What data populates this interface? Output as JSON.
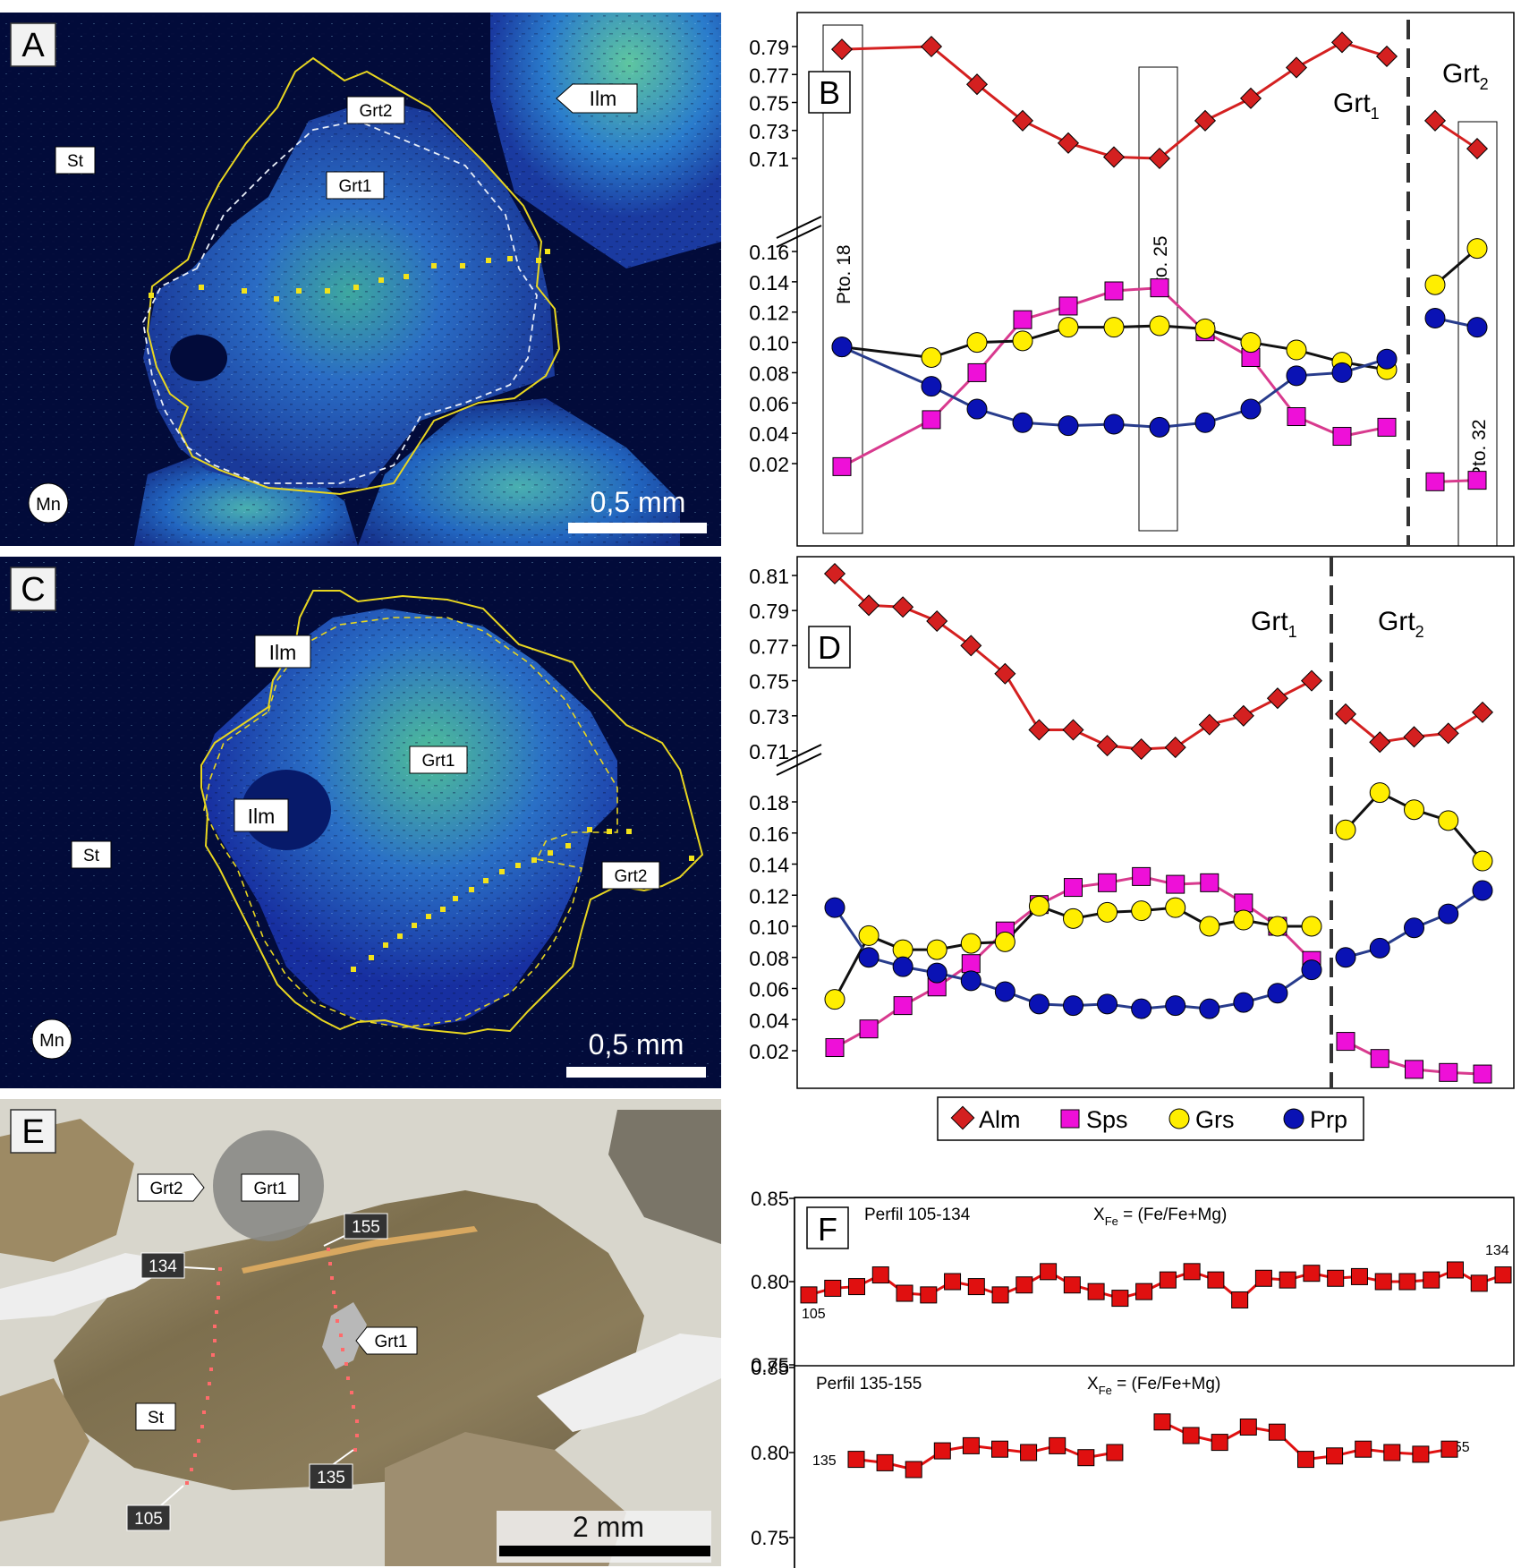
{
  "panels": {
    "A": {
      "letter": "A",
      "scale": "0,5 mm",
      "labels": {
        "grt2": "Grt2",
        "grt1": "Grt1",
        "ilm": "Ilm",
        "st": "St",
        "mn": "Mn"
      }
    },
    "C": {
      "letter": "C",
      "scale": "0,5 mm",
      "labels": {
        "ilm1": "Ilm",
        "ilm2": "Ilm",
        "grt1": "Grt1",
        "grt2": "Grt2",
        "st": "St",
        "mn": "Mn"
      }
    },
    "E": {
      "letter": "E",
      "scale": "2 mm",
      "labels": {
        "grt2": "Grt2",
        "grt1": "Grt1",
        "grt1b": "Grt1",
        "st": "St",
        "p134": "134",
        "p155": "155",
        "p135": "135",
        "p105": "105"
      }
    }
  },
  "colors": {
    "alm": "#d42020",
    "sps": "#ee10d8",
    "grs": "#ffee00",
    "prp": "#0a12b4",
    "sps_line": "#d83a8e",
    "prp_line": "#283c8c",
    "xfe": "#e01010"
  },
  "legend": {
    "alm": "Alm",
    "sps": "Sps",
    "grs": "Grs",
    "prp": "Prp"
  },
  "chart_data": [
    {
      "type": "line",
      "panel": "B",
      "zone_labels": {
        "grt1": "Grt",
        "grt1_sub": "1",
        "grt2": "Grt",
        "grt2_sub": "2"
      },
      "points": {
        "p18": "Pto. 18",
        "p25": "Pto. 25",
        "p32": "Pto. 32"
      },
      "upper_axis": {
        "ticks": [
          "0.79",
          "0.77",
          "0.75",
          "0.73",
          "0.71"
        ],
        "range": [
          0.702,
          0.8
        ]
      },
      "lower_axis": {
        "ticks": [
          "0.16",
          "0.14",
          "0.12",
          "0.10",
          "0.08",
          "0.06",
          "0.04",
          "0.02"
        ],
        "range": [
          0.0,
          0.17
        ]
      },
      "grt1_x": [
        1,
        2,
        3,
        4,
        5,
        6,
        7,
        8,
        9,
        10,
        11,
        12,
        13
      ],
      "grt2_x": [
        14,
        15
      ],
      "series": [
        {
          "name": "Alm",
          "grt1": [
            0.788,
            0.79,
            0.763,
            0.737,
            0.721,
            0.711,
            0.71,
            0.737,
            0.753,
            0.775,
            0.793,
            0.783
          ],
          "grt1_x": [
            1,
            3,
            4,
            5,
            6,
            7,
            8,
            9,
            10,
            11,
            12,
            13
          ],
          "grt2": [
            0.737,
            0.717
          ]
        },
        {
          "name": "Sps",
          "grt1": [
            0.018,
            0.049,
            0.08,
            0.115,
            0.124,
            0.134,
            0.136,
            0.107,
            0.09,
            0.051,
            0.038,
            0.044
          ],
          "grt1_x": [
            1,
            3,
            4,
            5,
            6,
            7,
            8,
            9,
            10,
            11,
            12,
            13
          ],
          "grt2": [
            0.008,
            0.009
          ]
        },
        {
          "name": "Grs",
          "grt1": [
            0.097,
            0.09,
            0.1,
            0.101,
            0.11,
            0.11,
            0.111,
            0.109,
            0.1,
            0.095,
            0.087,
            0.082
          ],
          "grt1_x": [
            1,
            3,
            4,
            5,
            6,
            7,
            8,
            9,
            10,
            11,
            12,
            13
          ],
          "grt2": [
            0.138,
            0.162
          ]
        },
        {
          "name": "Prp",
          "grt1": [
            0.097,
            0.071,
            0.056,
            0.047,
            0.045,
            0.046,
            0.044,
            0.047,
            0.056,
            0.078,
            0.08,
            0.089
          ],
          "grt1_x": [
            1,
            3,
            4,
            5,
            6,
            7,
            8,
            9,
            10,
            11,
            12,
            13
          ],
          "grt2": [
            0.116,
            0.11
          ]
        }
      ]
    },
    {
      "type": "line",
      "panel": "D",
      "zone_labels": {
        "grt1": "Grt",
        "grt1_sub": "1",
        "grt2": "Grt",
        "grt2_sub": "2"
      },
      "upper_axis": {
        "ticks": [
          "0.81",
          "0.79",
          "0.77",
          "0.75",
          "0.73",
          "0.71"
        ],
        "range": [
          0.7,
          0.815
        ]
      },
      "lower_axis": {
        "ticks": [
          "0.18",
          "0.16",
          "0.14",
          "0.12",
          "0.10",
          "0.08",
          "0.06",
          "0.04",
          "0.02"
        ],
        "range": [
          0.0,
          0.19
        ]
      },
      "series": [
        {
          "name": "Alm",
          "grt1": [
            0.811,
            0.793,
            0.792,
            0.784,
            0.77,
            0.754,
            0.722,
            0.722,
            0.713,
            0.711,
            0.712,
            0.725,
            0.73,
            0.74,
            0.75
          ],
          "grt2": [
            0.731,
            0.715,
            0.718,
            0.72,
            0.732
          ]
        },
        {
          "name": "Sps",
          "grt1": [
            0.022,
            0.034,
            0.049,
            0.061,
            0.076,
            0.097,
            0.114,
            0.125,
            0.128,
            0.132,
            0.127,
            0.128,
            0.115,
            0.1,
            0.078
          ],
          "grt2": [
            0.026,
            0.015,
            0.008,
            0.006,
            0.005
          ]
        },
        {
          "name": "Grs",
          "grt1": [
            0.053,
            0.094,
            0.085,
            0.085,
            0.089,
            0.09,
            0.113,
            0.105,
            0.109,
            0.11,
            0.112,
            0.1,
            0.104,
            0.1,
            0.1
          ],
          "grt2": [
            0.162,
            0.186,
            0.175,
            0.168,
            0.142
          ]
        },
        {
          "name": "Prp",
          "grt1": [
            0.112,
            0.08,
            0.074,
            0.07,
            0.065,
            0.058,
            0.05,
            0.049,
            0.05,
            0.047,
            0.049,
            0.047,
            0.051,
            0.057,
            0.072
          ],
          "grt2": [
            0.08,
            0.086,
            0.099,
            0.108,
            0.123
          ]
        }
      ]
    },
    {
      "type": "line",
      "panel": "F",
      "ticks": [
        "0.85",
        "0.80",
        "0.75"
      ],
      "sub": [
        {
          "title": "Perfil 105-134",
          "formula": {
            "x": "X",
            "sub": "Fe",
            "rest": " = (Fe/Fe+Mg)"
          },
          "start_label": "105",
          "end_label": "134",
          "ylim": [
            0.75,
            0.85
          ],
          "x": [
            105,
            106,
            107,
            108,
            109,
            110,
            111,
            112,
            113,
            114,
            115,
            116,
            117,
            118,
            119,
            120,
            121,
            122,
            123,
            124,
            125,
            126,
            127,
            128,
            129,
            130,
            131,
            132,
            133,
            134
          ],
          "values": [
            0.792,
            0.796,
            0.797,
            0.804,
            0.793,
            0.792,
            0.8,
            0.797,
            0.792,
            0.798,
            0.806,
            0.798,
            0.794,
            0.79,
            0.794,
            0.801,
            0.806,
            0.801,
            0.789,
            0.802,
            0.801,
            0.805,
            0.802,
            0.803,
            0.8,
            0.8,
            0.801,
            0.807,
            0.799,
            0.804
          ]
        },
        {
          "title": "Perfil 135-155",
          "formula": {
            "x": "X",
            "sub": "Fe",
            "rest": " = (Fe/Fe+Mg)"
          },
          "start_label": "135",
          "end_label": "155",
          "ylim": [
            0.75,
            0.85
          ],
          "segments": [
            {
              "x": [
                135,
                136,
                137,
                138,
                139,
                140,
                141,
                142,
                143,
                144
              ],
              "values": [
                0.796,
                0.794,
                0.79,
                0.801,
                0.804,
                0.802,
                0.8,
                0.804,
                0.797,
                0.8
              ]
            },
            {
              "x": [
                145,
                146,
                147,
                148,
                149,
                150,
                151,
                152,
                153,
                154,
                155
              ],
              "values": [
                0.818,
                0.81,
                0.806,
                0.815,
                0.812,
                0.796,
                0.798,
                0.802,
                0.8,
                0.799,
                0.802
              ]
            }
          ]
        }
      ]
    }
  ]
}
